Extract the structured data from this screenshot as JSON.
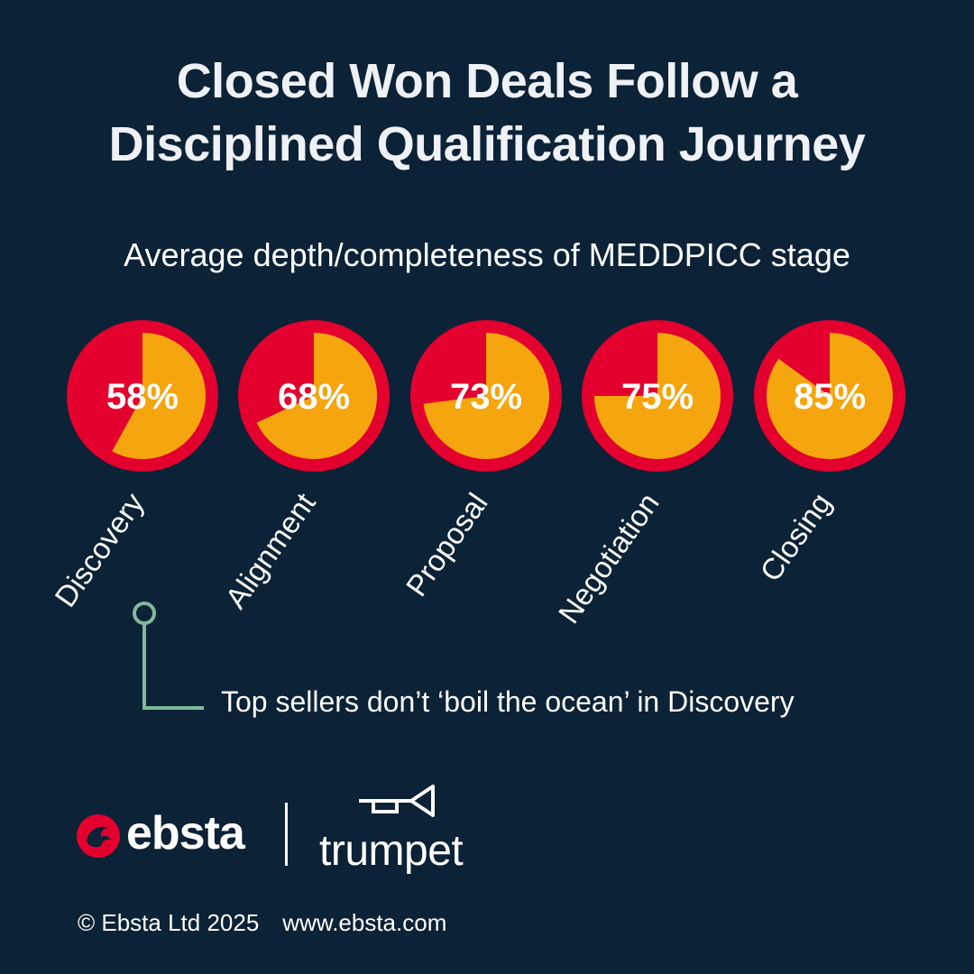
{
  "title_lines": [
    "Closed Won Deals Follow a",
    "Disciplined Qualification Journey"
  ],
  "subtitle": "Average depth/completeness of MEDDPICC stage",
  "chart_data": {
    "type": "pie",
    "title": "Average depth/completeness of MEDDPICC stage",
    "categories": [
      "Discovery",
      "Alignment",
      "Proposal",
      "Negotiation",
      "Closing"
    ],
    "values": [
      58,
      68,
      73,
      75,
      85
    ],
    "labels": [
      "58%",
      "68%",
      "73%",
      "75%",
      "85%"
    ],
    "unit": "%",
    "colors": {
      "filled": "#f5a50d",
      "remaining": "#e3002e"
    }
  },
  "annotation": "Top sellers don’t ‘boil the ocean’ in Discovery",
  "colors": {
    "background": "#0c2236",
    "callout": "#7fb99b"
  },
  "logos": {
    "ebsta": "ebsta",
    "trumpet": "trumpet",
    "ebsta_icon": "ebsta-bird-icon",
    "trumpet_icon": "trumpet-horn-icon"
  },
  "footer": {
    "copyright": "© Ebsta Ltd 2025",
    "website": "www.ebsta.com"
  }
}
